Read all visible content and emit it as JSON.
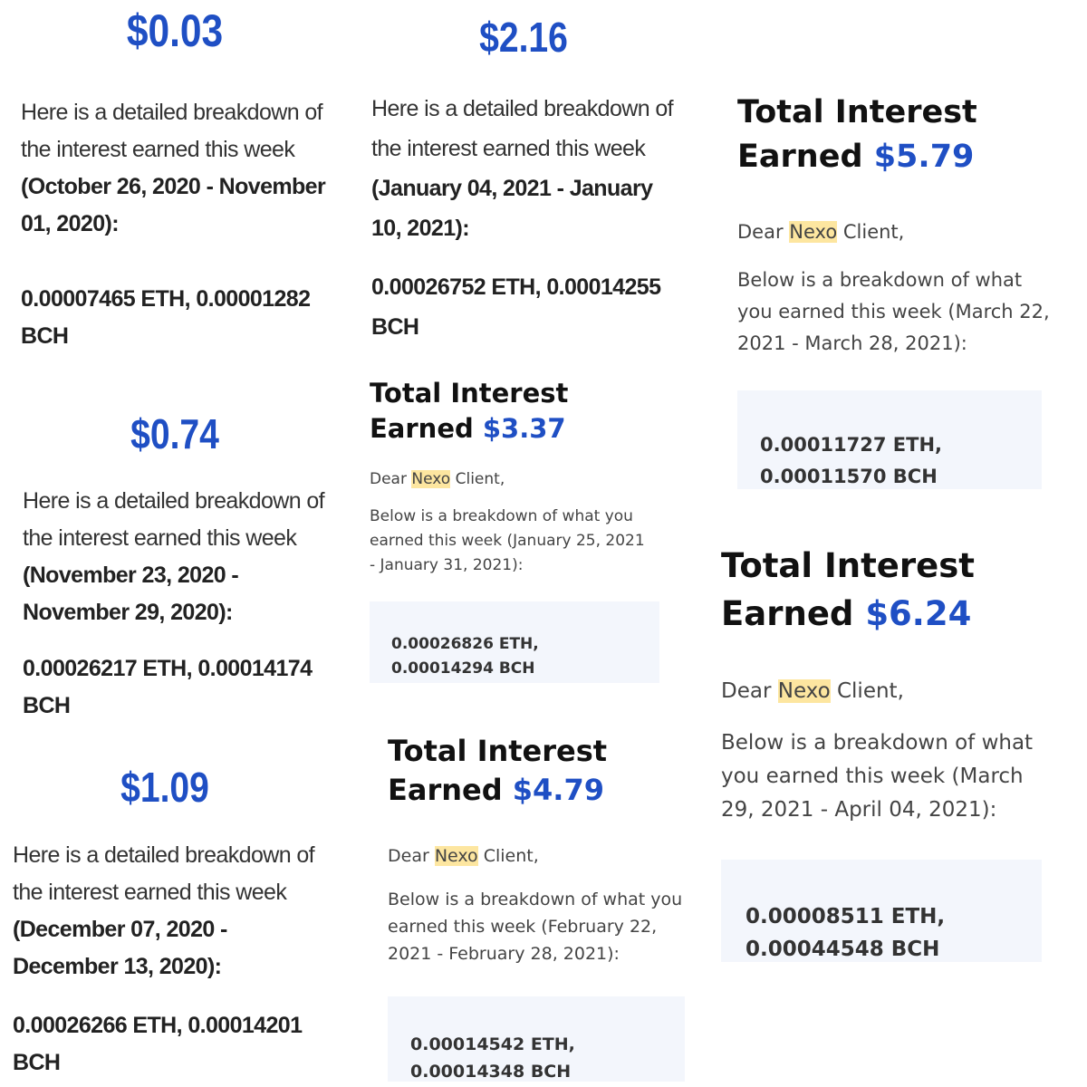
{
  "cards": [
    {
      "amount": "$0.03",
      "intro": "Here is a detailed breakdown of the interest earned this week",
      "period": "(October 26, 2020 - November 01, 2020):",
      "holdings": "0.00007465 ETH, 0.00001282 BCH"
    },
    {
      "amount": "$0.74",
      "intro": "Here is a detailed breakdown of the interest earned this week",
      "period": "(November 23, 2020 - November 29, 2020):",
      "holdings": "0.00026217 ETH, 0.00014174 BCH"
    },
    {
      "amount": "$1.09",
      "intro": "Here is a detailed breakdown of the interest earned this week",
      "period": "(December 07, 2020 - December 13, 2020):",
      "holdings": "0.00026266 ETH, 0.00014201 BCH"
    },
    {
      "amount": "$2.16",
      "intro": "Here is a detailed breakdown of the interest earned this week",
      "period": "(January 04, 2021 - January 10, 2021):",
      "holdings": "0.00026752 ETH, 0.00014255 BCH"
    }
  ],
  "emails": [
    {
      "heading": "Total Interest Earned",
      "amount": "$3.37",
      "greeting": [
        "Dear",
        "Nexo",
        "Client,"
      ],
      "breakdown": "Below is a breakdown of what you earned this week (January 25, 2021 - January 31, 2021):",
      "holdings": "0.00026826 ETH, 0.00014294 BCH"
    },
    {
      "heading": "Total Interest Earned",
      "amount": "$4.79",
      "greeting": [
        "Dear",
        "Nexo",
        "Client,"
      ],
      "breakdown": "Below is a breakdown of what you earned this week (February 22, 2021 - February 28, 2021):",
      "holdings": "0.00014542 ETH, 0.00014348 BCH"
    },
    {
      "heading": "Total Interest Earned",
      "amount": "$5.79",
      "greeting": [
        "Dear",
        "Nexo",
        "Client,"
      ],
      "breakdown": "Below is a breakdown of what you earned this week (March 22, 2021 - March 28, 2021):",
      "holdings": "0.00011727 ETH, 0.00011570 BCH"
    },
    {
      "heading": "Total Interest Earned",
      "amount": "$6.24",
      "greeting": [
        "Dear",
        "Nexo",
        "Client,"
      ],
      "breakdown": "Below is a breakdown of what you earned this week (March 29, 2021 - April 04, 2021):",
      "holdings": "0.00008511 ETH, 0.00044548 BCH"
    }
  ]
}
